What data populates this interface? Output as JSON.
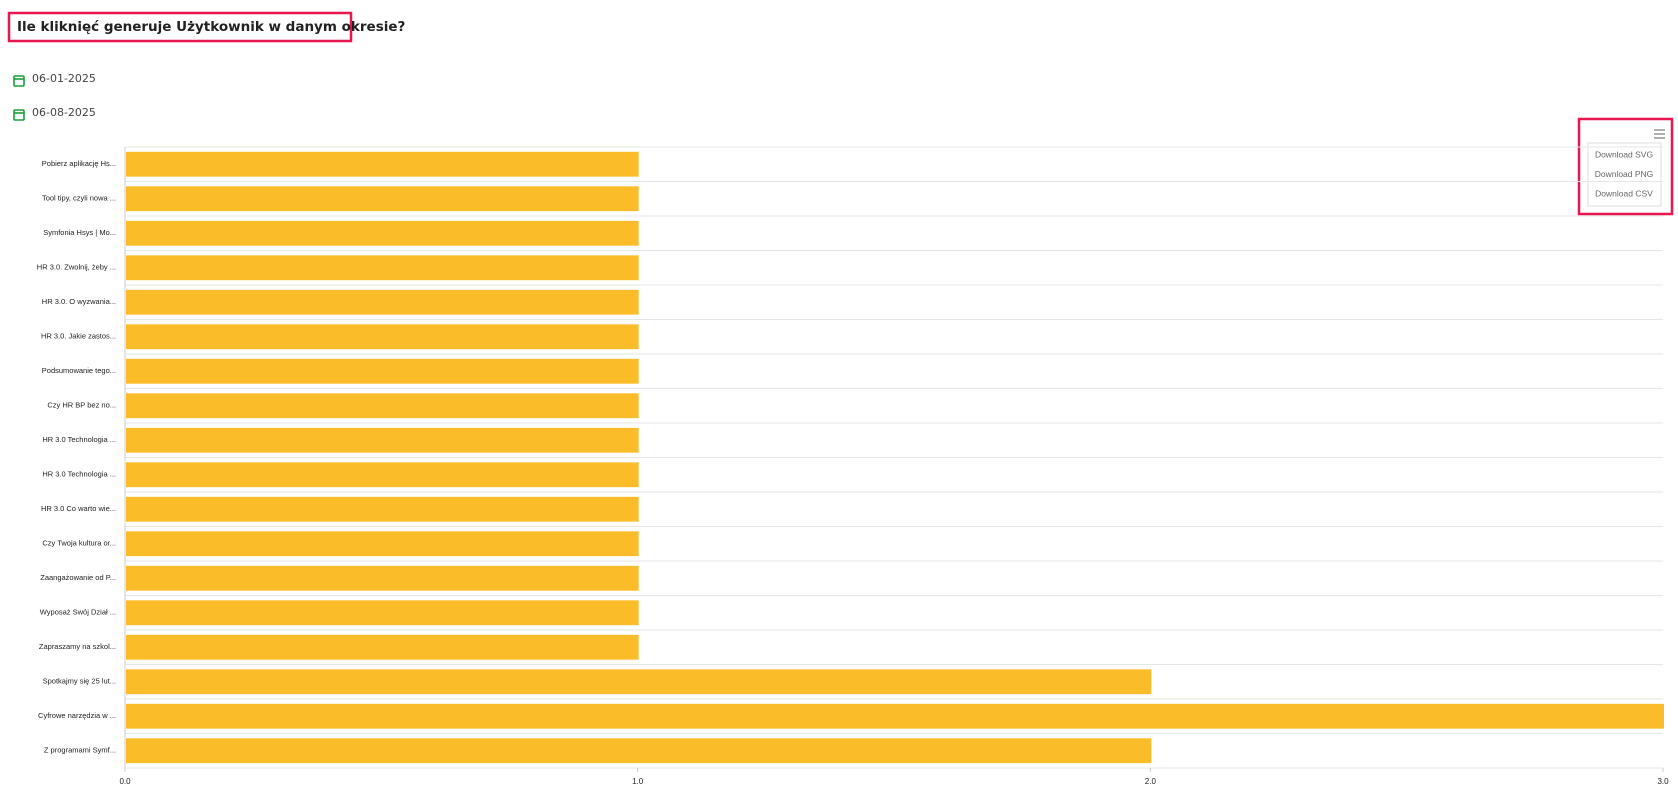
{
  "header": {
    "title": "Ile kliknięć generuje Użytkownik w danym okresie?"
  },
  "dates": {
    "from": "06-01-2025",
    "to": "06-08-2025"
  },
  "menu": {
    "items": [
      "Download SVG",
      "Download PNG",
      "Download CSV"
    ]
  },
  "chart_data": {
    "type": "bar",
    "orientation": "horizontal",
    "color": "#fbbc2a",
    "categories": [
      "Pobierz aplikację Hs...",
      "Tool tipy, czyli nowa ...",
      "Symfonia Hsys | Mo...",
      "HR 3.0. Zwolnij, żeby ...",
      "HR 3.0. O wyzwania...",
      "HR 3.0. Jakie zastos...",
      "Podsumowanie tego...",
      "Czy HR BP bez no...",
      "HR 3.0 Technologia ...",
      "HR 3.0 Technologia ...",
      "HR 3.0 Co warto wie...",
      "Czy Twoja kultura or...",
      "Zaangażowanie od P...",
      "Wyposaż Swój Dział ...",
      "Zapraszamy na szkol...",
      "Spotkajmy się 25 lut...",
      "Cyfrowe narzędzia w ...",
      "Z programami Symf..."
    ],
    "values": [
      1,
      1,
      1,
      1,
      1,
      1,
      1,
      1,
      1,
      1,
      1,
      1,
      1,
      1,
      1,
      2,
      3,
      2
    ],
    "xlim": [
      0,
      3
    ],
    "xticks": [
      {
        "value": 0,
        "label": "0.0"
      },
      {
        "value": 1,
        "label": "1.0"
      },
      {
        "value": 2,
        "label": "2.0"
      },
      {
        "value": 3,
        "label": "3.0"
      }
    ]
  }
}
